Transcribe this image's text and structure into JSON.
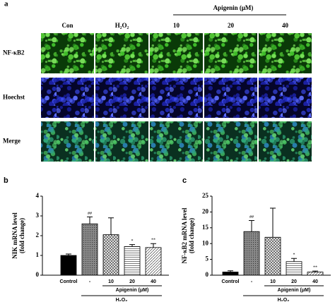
{
  "panel_a": {
    "label": "a",
    "treatment_label": "Apigenin (μM)",
    "columns": [
      "Con",
      "H₂O₂",
      "10",
      "20",
      "40"
    ],
    "rows": [
      "NF-κB2",
      "Hoechst",
      "Merge"
    ]
  },
  "chart_data": [
    {
      "type": "bar",
      "panel": "b",
      "ylabel": [
        "NIK mRNA level",
        "(fold change)"
      ],
      "categories": [
        "Control",
        "-",
        "10",
        "20",
        "40"
      ],
      "values": [
        1.0,
        2.6,
        2.05,
        1.45,
        1.4
      ],
      "errors": [
        0.07,
        0.35,
        0.85,
        0.1,
        0.2
      ],
      "annotations": [
        null,
        "##",
        null,
        "*",
        "**"
      ],
      "fills": [
        "black",
        "dots",
        "crosshatch",
        "hlines",
        "diagonal"
      ],
      "group_labels": [
        "Apigenin (μM)",
        "H₂O₂"
      ],
      "ylim": [
        0,
        4
      ],
      "yticks": [
        0,
        1,
        2,
        3,
        4
      ]
    },
    {
      "type": "bar",
      "panel": "c",
      "ylabel": [
        "NF-κB2 mRNA level",
        "(fold change)"
      ],
      "categories": [
        "Control",
        "-",
        "10",
        "20",
        "40"
      ],
      "values": [
        1.0,
        13.8,
        12.0,
        4.3,
        1.0
      ],
      "errors": [
        0.4,
        3.5,
        9.2,
        1.0,
        0.3
      ],
      "annotations": [
        null,
        "##",
        null,
        "*",
        "**"
      ],
      "fills": [
        "black",
        "dots",
        "crosshatch",
        "hlines",
        "diagonal"
      ],
      "group_labels": [
        "Apigenin (μM)",
        "H₂O₂"
      ],
      "ylim": [
        0,
        25
      ],
      "yticks": [
        0,
        5,
        10,
        15,
        20,
        25
      ]
    }
  ]
}
